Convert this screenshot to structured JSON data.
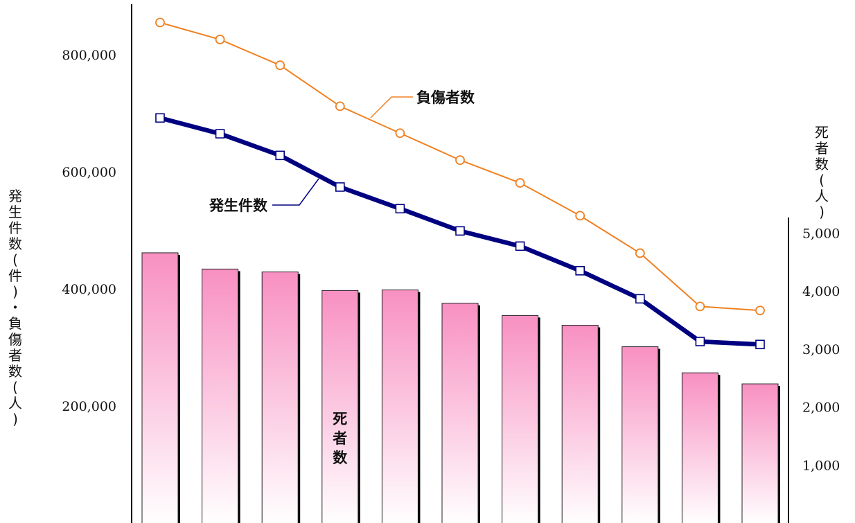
{
  "chart_data": {
    "type": "bar+line",
    "left_axis": {
      "label": "発生件数(件)・負傷者数(人)",
      "ticks": [
        "200,000",
        "400,000",
        "600,000",
        "800,000"
      ],
      "tick_values": [
        200000,
        400000,
        600000,
        800000
      ],
      "range": [
        0,
        880000
      ]
    },
    "right_axis": {
      "label": "死者数(人)",
      "ticks": [
        "1,000",
        "2,000",
        "3,000",
        "4,000",
        "5,000"
      ],
      "tick_values": [
        1000,
        2000,
        3000,
        4000,
        5000
      ],
      "range": [
        0,
        5000
      ]
    },
    "series": [
      {
        "name": "負傷者数",
        "kind": "line",
        "axis": "left",
        "color": "#f08020",
        "marker": "circle",
        "values": [
          855000,
          826000,
          782000,
          712000,
          666000,
          620000,
          581000,
          525000,
          461000,
          370000,
          363000
        ]
      },
      {
        "name": "発生件数",
        "kind": "line",
        "axis": "left",
        "color": "#000080",
        "marker": "square",
        "values": [
          692000,
          665000,
          628000,
          574000,
          537000,
          499000,
          473000,
          431000,
          383000,
          310000,
          305000
        ]
      },
      {
        "name": "死者数",
        "kind": "bar",
        "axis": "right",
        "color": "#f88cc0",
        "values": [
          4660,
          4380,
          4330,
          4010,
          4020,
          3790,
          3580,
          3410,
          3040,
          2590,
          2400
        ]
      }
    ]
  }
}
